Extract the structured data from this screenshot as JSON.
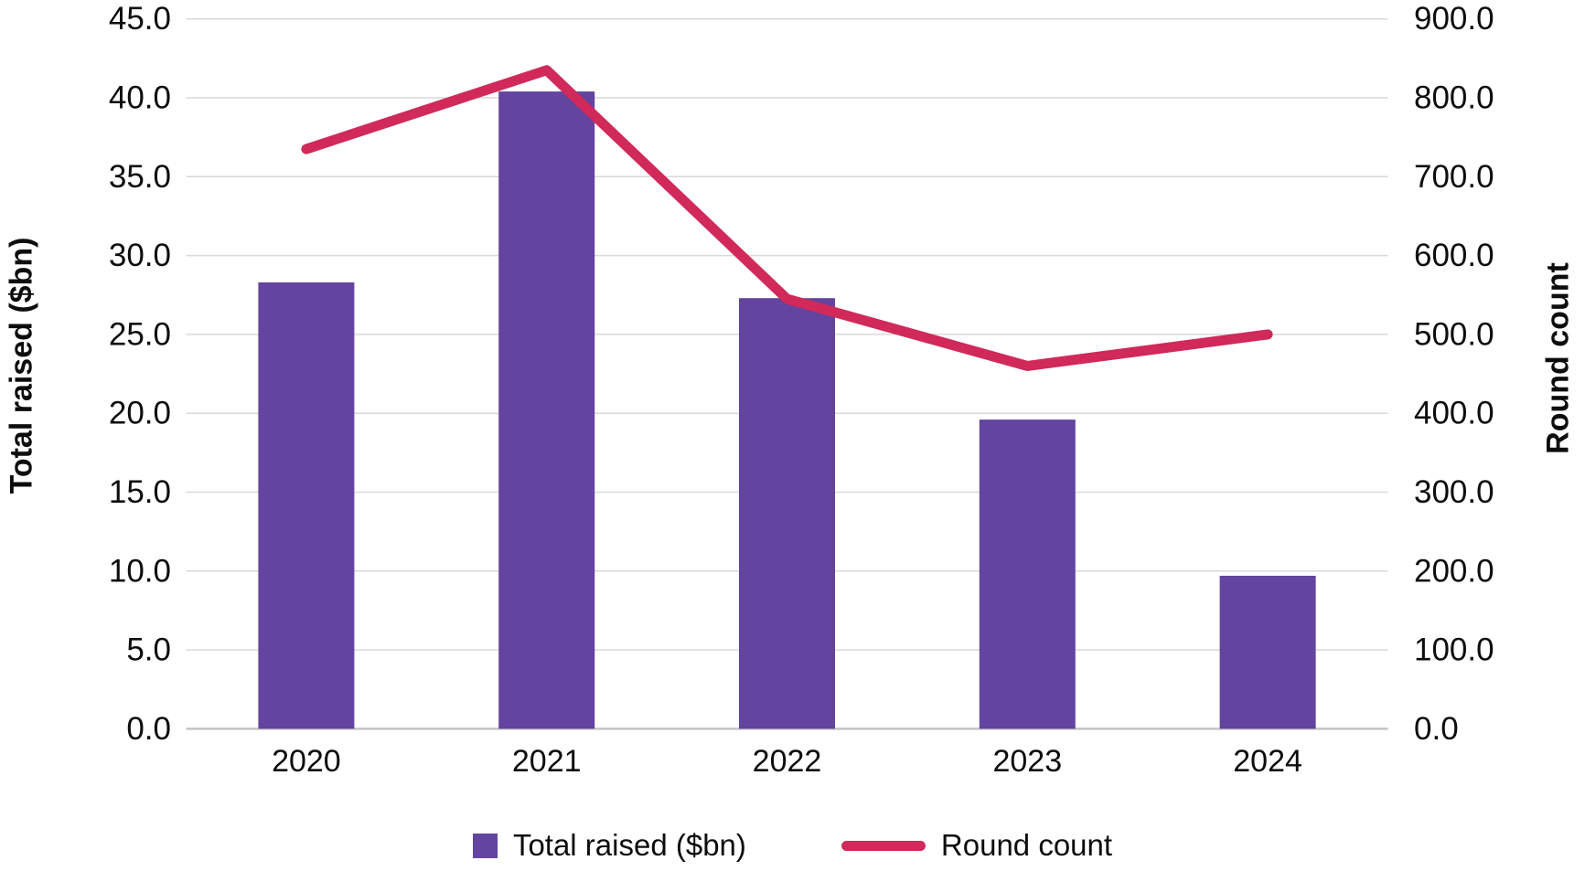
{
  "chart_data": {
    "type": "bar",
    "subtype": "combo-bar-line-dual-axis",
    "title": "",
    "categories": [
      "2020",
      "2021",
      "2022",
      "2023",
      "2024"
    ],
    "series": [
      {
        "name": "Total raised ($bn)",
        "type": "bar",
        "axis": "left",
        "values": [
          28.3,
          40.4,
          27.3,
          19.6,
          9.7
        ]
      },
      {
        "name": "Round count",
        "type": "line",
        "axis": "right",
        "values": [
          735,
          835,
          545,
          460,
          500
        ]
      }
    ],
    "left_axis": {
      "label": "Total raised ($bn)",
      "min": 0,
      "max": 45,
      "step": 5,
      "tick_decimals": 1
    },
    "right_axis": {
      "label": "Round count",
      "min": 0,
      "max": 900,
      "step": 100,
      "tick_decimals": 1
    },
    "grid": true,
    "legend_position": "bottom"
  },
  "legend": {
    "items": [
      {
        "label": "Total raised ($bn)",
        "swatch": "square"
      },
      {
        "label": "Round count",
        "swatch": "line"
      }
    ]
  },
  "colors": {
    "bar": "#63449f",
    "line": "#d0295a",
    "grid": "#d9d9d9",
    "axis": "#c4c4c4",
    "text": "#0d0d0d"
  }
}
